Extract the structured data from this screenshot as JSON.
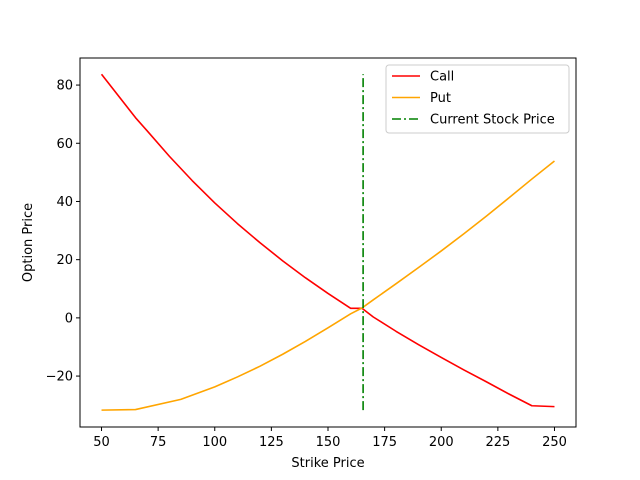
{
  "chart_data": {
    "type": "line",
    "xlabel": "Strike Price",
    "ylabel": "Option Price",
    "xlim": [
      40.5,
      259.5
    ],
    "ylim": [
      -37.5,
      89.3
    ],
    "x_ticks": [
      50,
      75,
      100,
      125,
      150,
      175,
      200,
      225,
      250
    ],
    "y_ticks": [
      -20,
      0,
      20,
      40,
      60,
      80
    ],
    "grid": false,
    "legend": "top-right",
    "series": [
      {
        "name": "Call",
        "color": "#ff0000",
        "style": "solid",
        "x": [
          50,
          65,
          70,
          80,
          90,
          100,
          110,
          120,
          130,
          140,
          150,
          160,
          165,
          170,
          180,
          190,
          200,
          210,
          220,
          230,
          240,
          250
        ],
        "y": [
          83.7,
          68.8,
          64.4,
          55.5,
          47.2,
          39.5,
          32.4,
          25.8,
          19.6,
          13.8,
          8.4,
          3.3,
          3.3,
          0.3,
          -4.6,
          -9.2,
          -13.6,
          -17.9,
          -22.0,
          -26.2,
          -30.2,
          -30.5
        ]
      },
      {
        "name": "Put",
        "color": "#ffa500",
        "style": "solid",
        "x": [
          50,
          65,
          85,
          100,
          110,
          120,
          130,
          140,
          150,
          160,
          165,
          170,
          180,
          190,
          200,
          210,
          220,
          230,
          240,
          250
        ],
        "y": [
          -31.7,
          -31.5,
          -28.0,
          -23.7,
          -20.3,
          -16.6,
          -12.5,
          -8.1,
          -3.4,
          1.4,
          3.4,
          6.2,
          11.7,
          17.3,
          23.0,
          28.9,
          35.0,
          41.3,
          47.7,
          53.9
        ]
      },
      {
        "name": "Current Stock Price",
        "color": "#008000",
        "style": "dashdot",
        "x": [
          165.5,
          165.5
        ],
        "y": [
          -31.7,
          83.7
        ]
      }
    ]
  }
}
